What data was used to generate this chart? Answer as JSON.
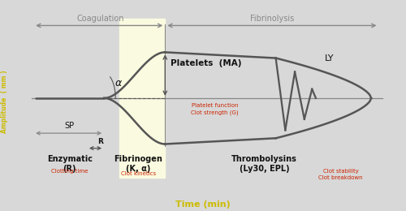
{
  "bg_color": "#d8d8d8",
  "plot_bg": "#ffffff",
  "yellow_bg": "#fafae0",
  "line_color": "#555555",
  "line_width": 1.8,
  "arrow_color": "#888888",
  "text_color_dark": "#111111",
  "text_color_red": "#cc2200",
  "text_color_yellow": "#ccbb00",
  "title": "Time (min)",
  "ylabel": "Amplitude  ( mm )",
  "coag_label": "Coagulation",
  "fibrin_label": "Fibrinolysis",
  "LY_label": "LY",
  "SP_label": "SP",
  "R_label": "R",
  "alpha_label": "α",
  "platelets_label": "Platelets  (MA)",
  "platelet_func_label": "Platelet function\nClot strength (G)",
  "enzymatic_label": "Enzymatic\n(R)",
  "clotting_label": "Clotting time",
  "fibrinogen_label": "Fibrinogen\n(K, α)",
  "clot_kinetics_label": "Clot kinetics",
  "thrombolysin_label": "Thrombolysins\n(Ly30, EPL)",
  "clot_stability_label": "Clot stability\nClot breakdown",
  "xmin": 0,
  "xmax": 10,
  "ymin": -1.15,
  "ymax": 1.1
}
